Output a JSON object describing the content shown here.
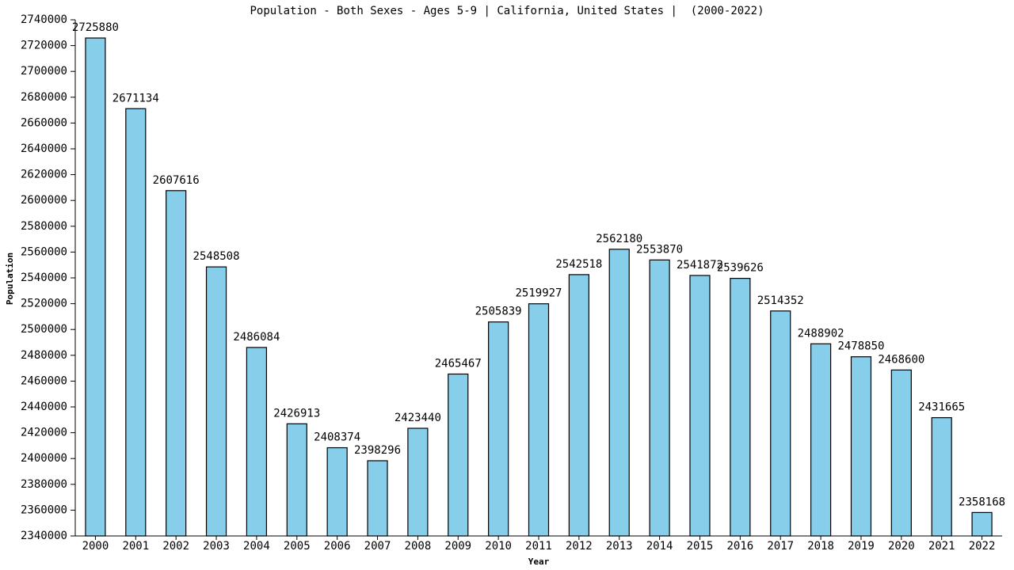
{
  "chart_data": {
    "type": "bar",
    "title": "Population - Both Sexes - Ages 5-9 | California, United States |  (2000-2022)",
    "x_label": "Year",
    "y_label": "Population",
    "categories": [
      "2000",
      "2001",
      "2002",
      "2003",
      "2004",
      "2005",
      "2006",
      "2007",
      "2008",
      "2009",
      "2010",
      "2011",
      "2012",
      "2013",
      "2014",
      "2015",
      "2016",
      "2017",
      "2018",
      "2019",
      "2020",
      "2021",
      "2022"
    ],
    "values": [
      2725880,
      2671134,
      2607616,
      2548508,
      2486084,
      2426913,
      2408374,
      2398296,
      2423440,
      2465467,
      2505839,
      2519927,
      2542518,
      2562180,
      2553870,
      2541872,
      2539626,
      2514352,
      2488902,
      2478850,
      2468600,
      2431665,
      2358168
    ],
    "color": "#87ceeb",
    "ylim": [
      2340000,
      2740000
    ],
    "yticks": [
      2340000,
      2360000,
      2380000,
      2400000,
      2420000,
      2440000,
      2460000,
      2480000,
      2500000,
      2520000,
      2540000,
      2560000,
      2580000,
      2600000,
      2620000,
      2640000,
      2660000,
      2680000,
      2700000,
      2720000,
      2740000
    ],
    "grid": false
  }
}
